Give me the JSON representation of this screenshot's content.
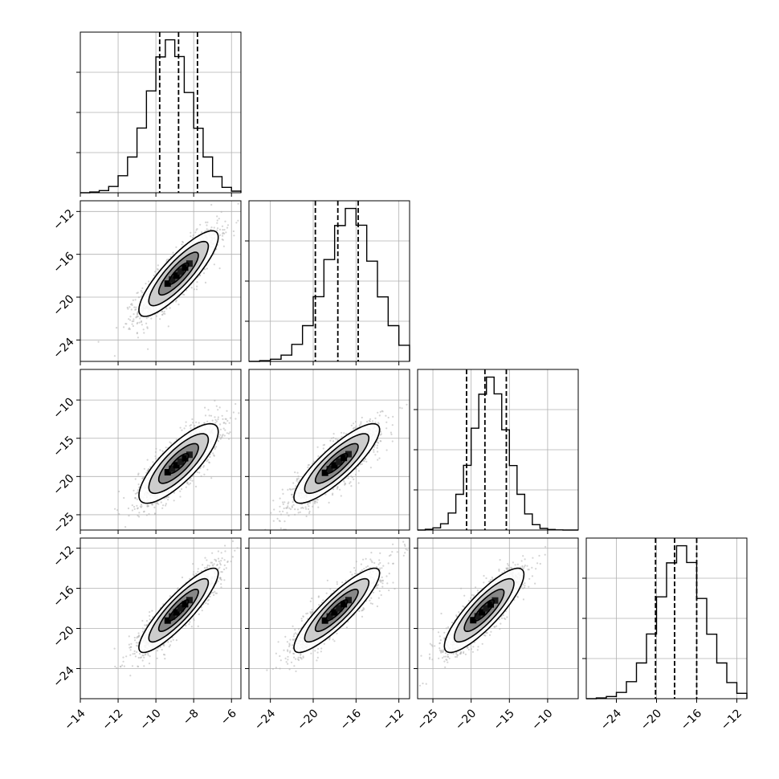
{
  "chart_data": {
    "type": "corner",
    "grid": true,
    "colors": {
      "hist": "#000000",
      "quantile": "#000000",
      "scatter": "#b0b0b0",
      "grid": "#b0b0b0"
    },
    "params": [
      {
        "id": "p0",
        "range": [
          -14,
          -5.5
        ],
        "ticks": [
          -14,
          -12,
          -10,
          -8,
          -6
        ],
        "tick_labels": [
          "−14",
          "−12",
          "−10",
          "−8",
          "−6"
        ],
        "quantiles": [
          -9.8,
          -8.8,
          -7.8
        ],
        "hist_bin_edges": [
          -14,
          -13.5,
          -13,
          -12.5,
          -12,
          -11.5,
          -11,
          -10.5,
          -10,
          -9.5,
          -9,
          -8.5,
          -8,
          -7.5,
          -7,
          -6.5,
          -6,
          -5.5
        ],
        "hist_counts": [
          0,
          4,
          12,
          35,
          95,
          200,
          362,
          570,
          760,
          856,
          762,
          561,
          361,
          200,
          90,
          30,
          9
        ]
      },
      {
        "id": "p1",
        "range": [
          -26,
          -11
        ],
        "ticks": [
          -24,
          -20,
          -16,
          -12
        ],
        "tick_labels": [
          "−24",
          "−20",
          "−16",
          "−12"
        ],
        "quantiles": [
          -19.8,
          -17.7,
          -15.8
        ],
        "hist_bin_edges": [
          -26,
          -25,
          -24,
          -23,
          -22,
          -21,
          -20,
          -19,
          -18,
          -17,
          -16,
          -15,
          -14,
          -13,
          -12,
          -11
        ],
        "hist_counts": [
          0,
          4,
          12,
          35,
          95,
          200,
          362,
          570,
          760,
          856,
          762,
          561,
          361,
          200,
          90
        ]
      },
      {
        "id": "p2",
        "range": [
          -27,
          -6
        ],
        "ticks": [
          -25,
          -20,
          -15,
          -10
        ],
        "tick_labels": [
          "−25",
          "−20",
          "−15",
          "−10"
        ],
        "quantiles": [
          -20.6,
          -18.2,
          -15.4
        ],
        "hist_bin_edges": [
          -27,
          -26,
          -25,
          -24,
          -23,
          -22,
          -21,
          -20,
          -19,
          -18,
          -17,
          -16,
          -15,
          -14,
          -13,
          -12,
          -11,
          -10,
          -9,
          -8,
          -7,
          -6
        ],
        "hist_counts": [
          0,
          4,
          12,
          35,
          95,
          200,
          362,
          570,
          760,
          856,
          762,
          561,
          361,
          200,
          90,
          30,
          9,
          3,
          1,
          0,
          0
        ]
      },
      {
        "id": "p3",
        "range": [
          -27,
          -11
        ],
        "ticks": [
          -24,
          -20,
          -16,
          -12
        ],
        "tick_labels": [
          "−24",
          "−20",
          "−16",
          "−12"
        ],
        "quantiles": [
          -20.1,
          -18.2,
          -16.0
        ],
        "hist_bin_edges": [
          -27,
          -26,
          -25,
          -24,
          -23,
          -22,
          -21,
          -20,
          -19,
          -18,
          -17,
          -16,
          -15,
          -14,
          -13,
          -12,
          -11
        ],
        "hist_counts": [
          0,
          4,
          12,
          35,
          95,
          200,
          362,
          570,
          760,
          856,
          762,
          561,
          361,
          200,
          90,
          30
        ]
      }
    ],
    "pairs": [
      {
        "x": "p0",
        "y": "p1",
        "mean": [
          -8.8,
          -17.8
        ],
        "std": [
          1.05,
          2.0
        ],
        "corr": 0.85,
        "n_scatter": 1500
      },
      {
        "x": "p0",
        "y": "p2",
        "mean": [
          -8.8,
          -18.3
        ],
        "std": [
          1.05,
          2.6
        ],
        "corr": 0.8,
        "n_scatter": 1500
      },
      {
        "x": "p1",
        "y": "p2",
        "mean": [
          -17.8,
          -18.3
        ],
        "std": [
          2.0,
          2.6
        ],
        "corr": 0.85,
        "n_scatter": 1500
      },
      {
        "x": "p0",
        "y": "p3",
        "mean": [
          -8.8,
          -18.2
        ],
        "std": [
          1.05,
          2.1
        ],
        "corr": 0.88,
        "n_scatter": 1500
      },
      {
        "x": "p1",
        "y": "p3",
        "mean": [
          -17.8,
          -18.2
        ],
        "std": [
          2.0,
          2.1
        ],
        "corr": 0.88,
        "n_scatter": 1500
      },
      {
        "x": "p2",
        "y": "p3",
        "mean": [
          -18.3,
          -18.2
        ],
        "std": [
          2.6,
          2.1
        ],
        "corr": 0.85,
        "n_scatter": 1500
      }
    ],
    "contour_levels": [
      0.5,
      1.0,
      1.5,
      2.0
    ]
  }
}
